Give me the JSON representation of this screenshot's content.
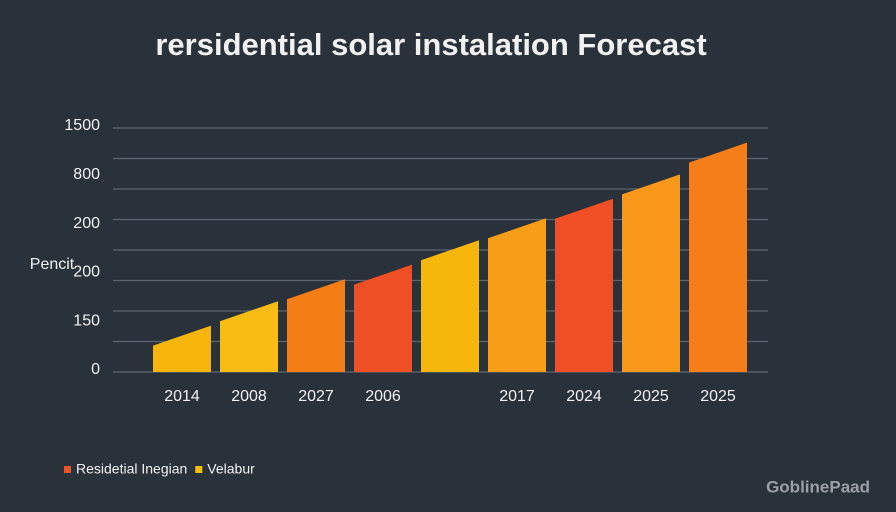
{
  "chart_data": {
    "type": "bar",
    "title": "rersidential solar instalation Forecast",
    "y_axis_label": "Pencit",
    "y_labels": [
      "1500",
      "800",
      "200",
      "200",
      "150",
      "0"
    ],
    "categories": [
      "2014",
      "2008",
      "2027",
      "2006",
      null,
      "2017",
      "2024",
      "2025",
      "2025"
    ],
    "values": [
      19,
      29,
      38,
      44,
      54,
      63,
      71,
      81,
      94
    ],
    "colors": [
      "#f5b50a",
      "#f7bd12",
      "#f57d15",
      "#ef4f24",
      "#f6b70d",
      "#f79d17",
      "#f04f25",
      "#f8981b",
      "#f67e19"
    ],
    "ylim": [
      0,
      100
    ],
    "yticks": [
      0,
      12.5,
      25,
      37.5,
      50,
      62.5,
      75,
      87.5,
      100
    ],
    "grid": true,
    "legend": [
      {
        "name": "Residetial Inegian",
        "color": "#e8552a"
      },
      {
        "name": "Velabur",
        "color": "#f4c20d"
      }
    ],
    "watermark": "GoblinePaad"
  }
}
